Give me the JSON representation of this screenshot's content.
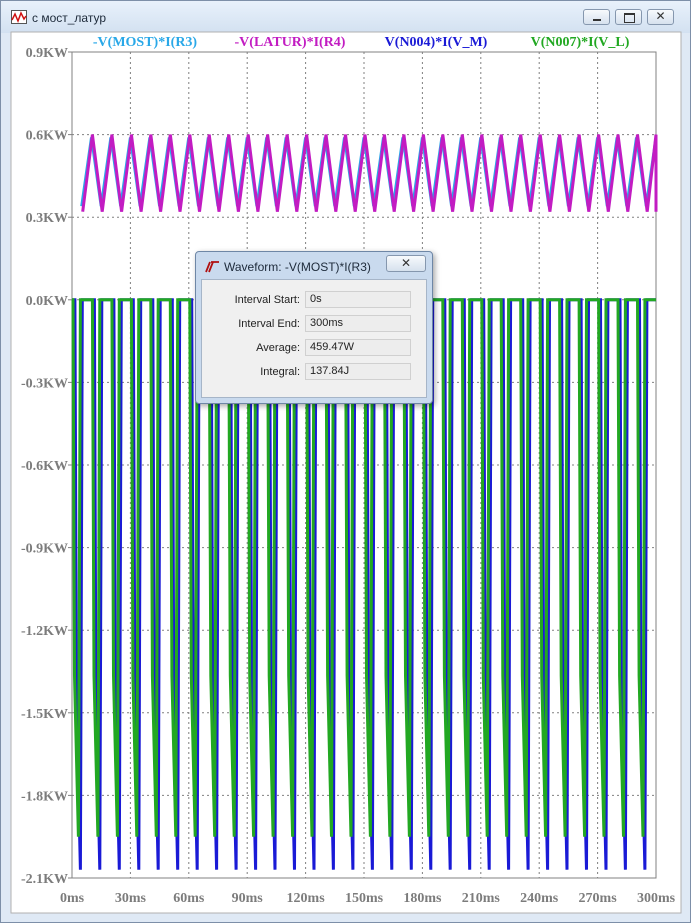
{
  "window": {
    "title": "с мост_латур"
  },
  "traces": [
    {
      "label": "-V(MOST)*I(R3)",
      "color": "#29a8e8"
    },
    {
      "label": "-V(LATUR)*I(R4)",
      "color": "#c21cc2"
    },
    {
      "label": "V(N004)*I(V_M)",
      "color": "#1a1ad6"
    },
    {
      "label": "V(N007)*I(V_L)",
      "color": "#22a822"
    }
  ],
  "chart_data": {
    "type": "line",
    "x_unit": "ms",
    "y_unit": "KW",
    "xlim": [
      0,
      300
    ],
    "ylim": [
      -2.1,
      0.9
    ],
    "x_ticks": [
      "0ms",
      "30ms",
      "60ms",
      "90ms",
      "120ms",
      "150ms",
      "180ms",
      "210ms",
      "240ms",
      "270ms",
      "300ms"
    ],
    "y_ticks": [
      "0.9KW",
      "0.6KW",
      "0.3KW",
      "0.0KW",
      "-0.3KW",
      "-0.6KW",
      "-0.9KW",
      "-1.2KW",
      "-1.5KW",
      "-1.8KW",
      "-2.1KW"
    ],
    "grid": true,
    "periods_in_window": 30,
    "series": [
      {
        "name": "-V(MOST)*I(R3)",
        "color": "#29a8e8",
        "min": 0.34,
        "max": 0.59
      },
      {
        "name": "-V(LATUR)*I(R4)",
        "color": "#c21cc2",
        "min": 0.32,
        "max": 0.6
      },
      {
        "name": "V(N004)*I(V_M)",
        "color": "#1a1ad6",
        "min": -2.07,
        "max": 0.0
      },
      {
        "name": "V(N007)*I(V_L)",
        "color": "#22a822",
        "min": -1.95,
        "max": 0.0
      }
    ]
  },
  "dialog": {
    "title": "Waveform: -V(MOST)*I(R3)",
    "close": "✕",
    "rows": [
      {
        "label": "Interval Start:",
        "value": "0s"
      },
      {
        "label": "Interval End:",
        "value": "300ms"
      },
      {
        "label": "Average:",
        "value": "459.47W"
      },
      {
        "label": "Integral:",
        "value": "137.84J"
      }
    ]
  }
}
